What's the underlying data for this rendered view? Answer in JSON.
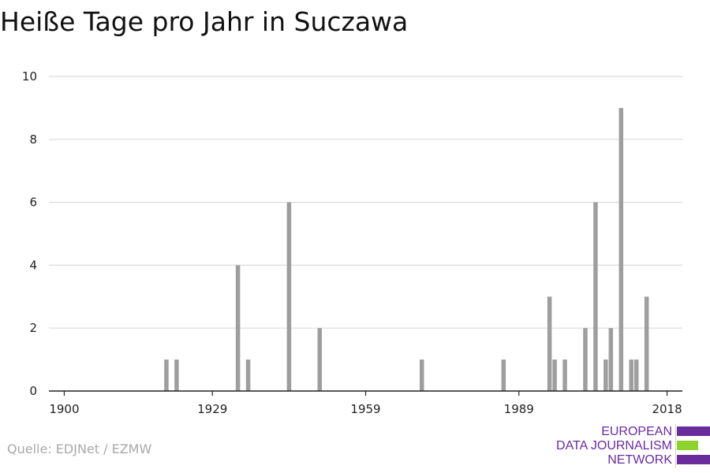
{
  "title": "Heiße Tage pro Jahr in Suczawa",
  "source": "Quelle: EDJNet / EZMW",
  "logo": {
    "lines": [
      "EUROPEAN",
      "DATA JOURNALISM",
      "NETWORK"
    ],
    "colors": {
      "purple": "#6a2b9c",
      "green": "#8fd12d"
    }
  },
  "colors": {
    "bar": "#9e9e9e",
    "grid": "#dcdcdc",
    "axis": "#222222"
  },
  "chart_data": {
    "type": "bar",
    "xlabel": "",
    "ylabel": "",
    "xlim": [
      1897,
      2021
    ],
    "ylim": [
      0,
      10
    ],
    "x_ticks": [
      1900,
      1929,
      1959,
      1989,
      2018
    ],
    "y_ticks": [
      0,
      2,
      4,
      6,
      8,
      10
    ],
    "grid": true,
    "x": [
      1920,
      1922,
      1934,
      1936,
      1944,
      1950,
      1970,
      1986,
      1995,
      1996,
      1998,
      2002,
      2004,
      2006,
      2007,
      2009,
      2011,
      2012,
      2014
    ],
    "values": [
      1,
      1,
      4,
      1,
      6,
      2,
      1,
      1,
      3,
      1,
      1,
      2,
      6,
      1,
      2,
      9,
      1,
      1,
      3
    ]
  }
}
